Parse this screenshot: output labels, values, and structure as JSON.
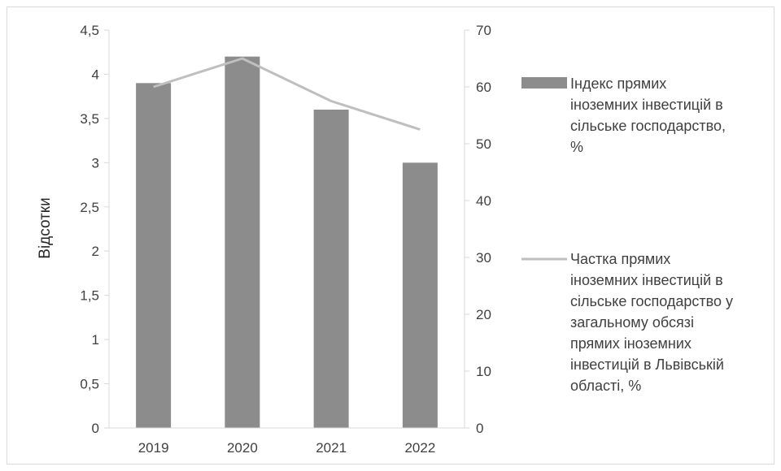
{
  "chart_data": {
    "type": "bar",
    "title": "",
    "categories": [
      "2019",
      "2020",
      "2021",
      "2022"
    ],
    "ylabel": "Відсотки",
    "xlabel": "",
    "ylim": [
      0,
      4.5
    ],
    "y2lim": [
      0,
      70
    ],
    "y_ticks": [
      "0",
      "0,5",
      "1",
      "1,5",
      "2",
      "2,5",
      "3",
      "3,5",
      "4",
      "4,5"
    ],
    "y2_ticks": [
      "0",
      "10",
      "20",
      "30",
      "40",
      "50",
      "60",
      "70"
    ],
    "grid": false,
    "legend_position": "right",
    "series": [
      {
        "name": "Індекс прямих іноземних інвестицій в сільське господарство, %",
        "legend_lines": [
          "Індекс прямих",
          "іноземних інвестицій в",
          "сільське господарство,",
          "%"
        ],
        "kind": "bar",
        "axis": "left",
        "color": "#8c8c8c",
        "values": [
          3.9,
          4.2,
          3.6,
          3.0
        ]
      },
      {
        "name": "Частка прямих іноземних інвестицій в сільське господарство у загальному обсязі прямих іноземних інвестицій в Львівській області, %",
        "legend_lines": [
          "Частка прямих",
          "іноземних інвестицій в",
          "сільське господарство у",
          "загальному обсязі",
          "прямих іноземних",
          "інвестицій в Львівській",
          "області, %"
        ],
        "kind": "line",
        "axis": "right",
        "color": "#bfbfbf",
        "values": [
          60,
          65,
          57.5,
          52.5
        ]
      }
    ]
  },
  "colors": {
    "axis": "#d9d9d9",
    "text": "#404040"
  }
}
